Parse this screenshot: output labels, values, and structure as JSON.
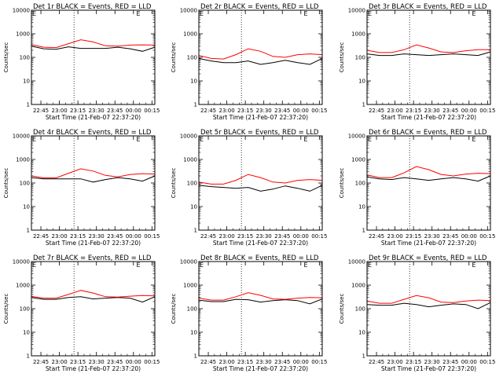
{
  "page": {
    "background": "#ffffff"
  },
  "colors": {
    "events": "#000000",
    "lld": "#ff0000",
    "axes": "#000000",
    "marker": "#000000"
  },
  "common": {
    "ylabel": "Counts/sec",
    "xlabel": "Start Time (21-Feb-07 22:37:20)",
    "yticks": [
      {
        "value": 1,
        "label": "1"
      },
      {
        "value": 10,
        "label": "10"
      },
      {
        "value": 100,
        "label": "100"
      },
      {
        "value": 1000,
        "label": "1000"
      },
      {
        "value": 10000,
        "label": "10000"
      }
    ],
    "xticks": [
      "22:45",
      "23:00",
      "23:15",
      "23:30",
      "23:45",
      "00:00",
      "00:15"
    ],
    "marker_label": "E",
    "vlines_after_start_min": [
      -7,
      27.5,
      131.5
    ]
  },
  "chart_data": [
    {
      "type": "line",
      "title": "Det 1r BLACK = Events, RED = LLD",
      "yscale": "log",
      "ylim": [
        1,
        10000
      ],
      "xlim": [
        "22:37:20",
        "00:17:20"
      ],
      "grid": false,
      "legend": "none",
      "x_minutes": [
        0,
        10,
        20,
        30,
        40,
        50,
        60,
        70,
        80,
        90,
        100
      ],
      "series": [
        {
          "name": "BLACK = Events",
          "values": [
            300,
            230,
            220,
            280,
            240,
            240,
            240,
            270,
            230,
            180,
            270
          ]
        },
        {
          "name": "RED = LLD",
          "values": [
            350,
            270,
            260,
            380,
            560,
            450,
            310,
            300,
            330,
            340,
            330
          ]
        }
      ]
    },
    {
      "type": "line",
      "title": "Det 2r BLACK = Events, RED = LLD",
      "yscale": "log",
      "ylim": [
        1,
        10000
      ],
      "xlim": [
        "22:37:20",
        "00:17:20"
      ],
      "grid": false,
      "legend": "none",
      "x_minutes": [
        0,
        10,
        20,
        30,
        40,
        50,
        60,
        70,
        80,
        90,
        100
      ],
      "series": [
        {
          "name": "BLACK = Events",
          "values": [
            90,
            70,
            60,
            60,
            70,
            50,
            60,
            75,
            60,
            50,
            90
          ]
        },
        {
          "name": "RED = LLD",
          "values": [
            120,
            90,
            85,
            130,
            230,
            180,
            110,
            100,
            130,
            140,
            130
          ]
        }
      ]
    },
    {
      "type": "line",
      "title": "Det 3r BLACK = Events, RED = LLD",
      "yscale": "log",
      "ylim": [
        1,
        10000
      ],
      "xlim": [
        "22:37:20",
        "00:17:20"
      ],
      "grid": false,
      "legend": "none",
      "x_minutes": [
        0,
        10,
        20,
        30,
        40,
        50,
        60,
        70,
        80,
        90,
        100
      ],
      "series": [
        {
          "name": "BLACK = Events",
          "values": [
            140,
            120,
            120,
            140,
            130,
            120,
            130,
            140,
            130,
            120,
            170
          ]
        },
        {
          "name": "RED = LLD",
          "values": [
            200,
            160,
            160,
            210,
            340,
            250,
            170,
            160,
            190,
            210,
            210
          ]
        }
      ]
    },
    {
      "type": "line",
      "title": "Det 4r BLACK = Events, RED = LLD",
      "yscale": "log",
      "ylim": [
        1,
        10000
      ],
      "xlim": [
        "22:37:20",
        "00:17:20"
      ],
      "grid": false,
      "legend": "none",
      "x_minutes": [
        0,
        10,
        20,
        30,
        40,
        50,
        60,
        70,
        80,
        90,
        100
      ],
      "series": [
        {
          "name": "BLACK = Events",
          "values": [
            170,
            150,
            150,
            150,
            150,
            110,
            140,
            170,
            150,
            120,
            200
          ]
        },
        {
          "name": "RED = LLD",
          "values": [
            200,
            165,
            165,
            260,
            400,
            320,
            210,
            180,
            230,
            250,
            240
          ]
        }
      ]
    },
    {
      "type": "line",
      "title": "Det 5r BLACK = Events, RED = LLD",
      "yscale": "log",
      "ylim": [
        1,
        10000
      ],
      "xlim": [
        "22:37:20",
        "00:17:20"
      ],
      "grid": false,
      "legend": "none",
      "x_minutes": [
        0,
        10,
        20,
        30,
        40,
        50,
        60,
        70,
        80,
        90,
        100
      ],
      "series": [
        {
          "name": "BLACK = Events",
          "values": [
            80,
            70,
            65,
            60,
            65,
            45,
            55,
            75,
            60,
            45,
            80
          ]
        },
        {
          "name": "RED = LLD",
          "values": [
            110,
            90,
            90,
            130,
            230,
            170,
            110,
            100,
            130,
            140,
            130
          ]
        }
      ]
    },
    {
      "type": "line",
      "title": "Det 6r BLACK = Events, RED = LLD",
      "yscale": "log",
      "ylim": [
        1,
        10000
      ],
      "xlim": [
        "22:37:20",
        "00:17:20"
      ],
      "grid": false,
      "legend": "none",
      "x_minutes": [
        0,
        10,
        20,
        30,
        40,
        50,
        60,
        70,
        80,
        90,
        100
      ],
      "series": [
        {
          "name": "BLACK = Events",
          "values": [
            180,
            150,
            140,
            170,
            150,
            130,
            150,
            170,
            150,
            120,
            200
          ]
        },
        {
          "name": "RED = LLD",
          "values": [
            220,
            170,
            170,
            270,
            500,
            370,
            230,
            200,
            240,
            260,
            250
          ]
        }
      ]
    },
    {
      "type": "line",
      "title": "Det 7r BLACK = Events, RED = LLD",
      "yscale": "log",
      "ylim": [
        1,
        10000
      ],
      "xlim": [
        "22:37:20",
        "00:17:20"
      ],
      "grid": false,
      "legend": "none",
      "x_minutes": [
        0,
        10,
        20,
        30,
        40,
        50,
        60,
        70,
        80,
        90,
        100
      ],
      "series": [
        {
          "name": "BLACK = Events",
          "values": [
            300,
            250,
            250,
            300,
            320,
            260,
            280,
            300,
            280,
            190,
            320
          ]
        },
        {
          "name": "RED = LLD",
          "values": [
            330,
            280,
            280,
            400,
            600,
            460,
            320,
            310,
            340,
            360,
            350
          ]
        }
      ]
    },
    {
      "type": "line",
      "title": "Det 8r BLACK = Events, RED = LLD",
      "yscale": "log",
      "ylim": [
        1,
        10000
      ],
      "xlim": [
        "22:37:20",
        "00:17:20"
      ],
      "grid": false,
      "legend": "none",
      "x_minutes": [
        0,
        10,
        20,
        30,
        40,
        50,
        60,
        70,
        80,
        90,
        100
      ],
      "series": [
        {
          "name": "BLACK = Events",
          "values": [
            230,
            200,
            200,
            250,
            240,
            190,
            220,
            240,
            220,
            160,
            260
          ]
        },
        {
          "name": "RED = LLD",
          "values": [
            280,
            230,
            230,
            320,
            480,
            370,
            260,
            250,
            280,
            300,
            290
          ]
        }
      ]
    },
    {
      "type": "line",
      "title": "Det 9r BLACK = Events, RED = LLD",
      "yscale": "log",
      "ylim": [
        1,
        10000
      ],
      "xlim": [
        "22:37:20",
        "00:17:20"
      ],
      "grid": false,
      "legend": "none",
      "x_minutes": [
        0,
        10,
        20,
        30,
        40,
        50,
        60,
        70,
        80,
        90,
        100
      ],
      "series": [
        {
          "name": "BLACK = Events",
          "values": [
            150,
            140,
            140,
            170,
            150,
            120,
            140,
            160,
            150,
            100,
            180
          ]
        },
        {
          "name": "RED = LLD",
          "values": [
            210,
            170,
            170,
            250,
            360,
            290,
            190,
            180,
            210,
            230,
            220
          ]
        }
      ]
    }
  ]
}
